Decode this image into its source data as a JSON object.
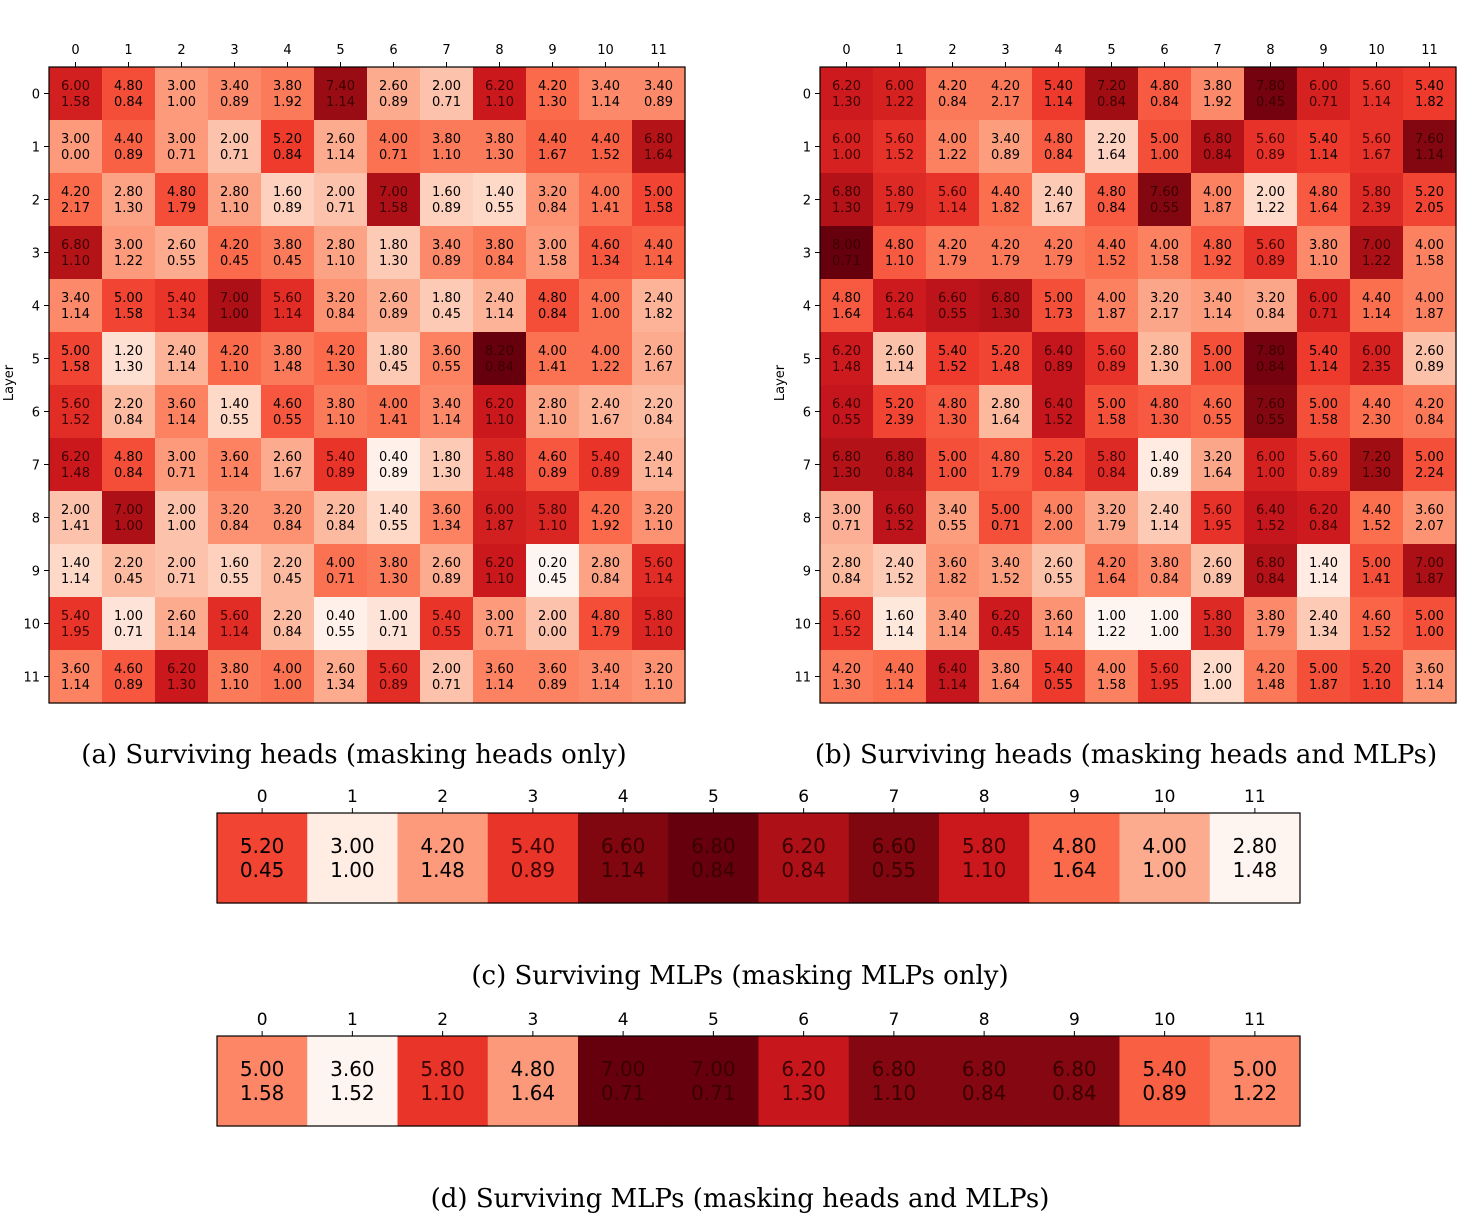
{
  "colormap": {
    "name": "Reds",
    "stops": [
      "#fff5f0",
      "#fee0d2",
      "#fcbba1",
      "#fc9272",
      "#fb6a4a",
      "#ef3b2c",
      "#cb181d",
      "#a50f15",
      "#67000d"
    ]
  },
  "chart_data": [
    {
      "type": "heatmap",
      "caption": "(a) Surviving heads (masking heads only)",
      "ylabel": "Layer",
      "x_ticks": [
        "0",
        "1",
        "2",
        "3",
        "4",
        "5",
        "6",
        "7",
        "8",
        "9",
        "10",
        "11"
      ],
      "y_ticks": [
        "0",
        "1",
        "2",
        "3",
        "4",
        "5",
        "6",
        "7",
        "8",
        "9",
        "10",
        "11"
      ],
      "mean": [
        [
          6.0,
          4.8,
          3.0,
          3.4,
          3.8,
          7.4,
          2.6,
          2.0,
          6.2,
          4.2,
          3.4,
          3.4
        ],
        [
          3.0,
          4.4,
          3.0,
          2.0,
          5.2,
          2.6,
          4.0,
          3.8,
          3.8,
          4.4,
          4.4,
          6.8
        ],
        [
          4.2,
          2.8,
          4.8,
          2.8,
          1.6,
          2.0,
          7.0,
          1.6,
          1.4,
          3.2,
          4.0,
          5.0
        ],
        [
          6.8,
          3.0,
          2.6,
          4.2,
          3.8,
          2.8,
          1.8,
          3.4,
          3.8,
          3.0,
          4.6,
          4.4
        ],
        [
          3.4,
          5.0,
          5.4,
          7.0,
          5.6,
          3.2,
          2.6,
          1.8,
          2.4,
          4.8,
          4.0,
          2.4
        ],
        [
          5.0,
          1.2,
          2.4,
          4.2,
          3.8,
          4.2,
          1.8,
          3.6,
          8.2,
          4.0,
          4.0,
          2.6
        ],
        [
          5.6,
          2.2,
          3.6,
          1.4,
          4.6,
          3.8,
          4.0,
          3.4,
          6.2,
          2.8,
          2.4,
          2.2
        ],
        [
          6.2,
          4.8,
          3.0,
          3.6,
          2.6,
          5.4,
          0.4,
          1.8,
          5.8,
          4.6,
          5.4,
          2.4
        ],
        [
          2.0,
          7.0,
          2.0,
          3.2,
          3.2,
          2.2,
          1.4,
          3.6,
          6.0,
          5.8,
          4.2,
          3.2
        ],
        [
          1.4,
          2.2,
          2.0,
          1.6,
          2.2,
          4.0,
          3.8,
          2.6,
          6.2,
          0.2,
          2.8,
          5.6
        ],
        [
          5.4,
          1.0,
          2.6,
          5.6,
          2.2,
          0.4,
          1.0,
          5.4,
          3.0,
          2.0,
          4.8,
          5.8
        ],
        [
          3.6,
          4.6,
          6.2,
          3.8,
          4.0,
          2.6,
          5.6,
          2.0,
          3.6,
          3.6,
          3.4,
          3.2
        ]
      ],
      "std": [
        [
          1.58,
          0.84,
          1.0,
          0.89,
          1.92,
          1.14,
          0.89,
          0.71,
          1.1,
          1.3,
          1.14,
          0.89
        ],
        [
          0.0,
          0.89,
          0.71,
          0.71,
          0.84,
          1.14,
          0.71,
          1.1,
          1.3,
          1.67,
          1.52,
          1.64
        ],
        [
          2.17,
          1.3,
          1.79,
          1.1,
          0.89,
          0.71,
          1.58,
          0.89,
          0.55,
          0.84,
          1.41,
          1.58
        ],
        [
          1.1,
          1.22,
          0.55,
          0.45,
          0.45,
          1.1,
          1.3,
          0.89,
          0.84,
          1.58,
          1.34,
          1.14
        ],
        [
          1.14,
          1.58,
          1.34,
          1.0,
          1.14,
          0.84,
          0.89,
          0.45,
          1.14,
          0.84,
          1.0,
          1.82
        ],
        [
          1.58,
          1.3,
          1.14,
          1.1,
          1.48,
          1.3,
          0.45,
          0.55,
          0.84,
          1.41,
          1.22,
          1.67
        ],
        [
          1.52,
          0.84,
          1.14,
          0.55,
          0.55,
          1.1,
          1.41,
          1.14,
          1.1,
          1.1,
          1.67,
          0.84
        ],
        [
          1.48,
          0.84,
          0.71,
          1.14,
          1.67,
          0.89,
          0.89,
          1.3,
          1.48,
          0.89,
          0.89,
          1.14
        ],
        [
          1.41,
          1.0,
          1.0,
          0.84,
          0.84,
          0.84,
          0.55,
          1.34,
          1.87,
          1.1,
          1.92,
          1.1
        ],
        [
          1.14,
          0.45,
          0.71,
          0.55,
          0.45,
          0.71,
          1.3,
          0.89,
          1.1,
          0.45,
          0.84,
          1.14
        ],
        [
          1.95,
          0.71,
          1.14,
          1.14,
          0.84,
          0.55,
          0.71,
          0.55,
          0.71,
          0.0,
          1.79,
          1.1
        ],
        [
          1.14,
          0.89,
          1.3,
          1.1,
          1.0,
          1.34,
          0.89,
          0.71,
          1.14,
          0.89,
          1.14,
          1.1
        ]
      ],
      "vmin": 0.2,
      "vmax": 8.2
    },
    {
      "type": "heatmap",
      "caption": "(b) Surviving heads (masking heads and MLPs)",
      "ylabel": "Layer",
      "x_ticks": [
        "0",
        "1",
        "2",
        "3",
        "4",
        "5",
        "6",
        "7",
        "8",
        "9",
        "10",
        "11"
      ],
      "y_ticks": [
        "0",
        "1",
        "2",
        "3",
        "4",
        "5",
        "6",
        "7",
        "8",
        "9",
        "10",
        "11"
      ],
      "mean": [
        [
          6.2,
          6.0,
          4.2,
          4.2,
          5.4,
          7.2,
          4.8,
          3.8,
          7.8,
          6.0,
          5.6,
          5.4
        ],
        [
          6.0,
          5.6,
          4.0,
          3.4,
          4.8,
          2.2,
          5.0,
          6.8,
          5.6,
          5.4,
          5.6,
          7.6
        ],
        [
          6.8,
          5.8,
          5.6,
          4.4,
          2.4,
          4.8,
          7.6,
          4.0,
          2.0,
          4.8,
          5.8,
          5.2
        ],
        [
          8.0,
          4.8,
          4.2,
          4.2,
          4.2,
          4.4,
          4.0,
          4.8,
          5.6,
          3.8,
          7.0,
          4.0
        ],
        [
          4.8,
          6.2,
          6.6,
          6.8,
          5.0,
          4.0,
          3.2,
          3.4,
          3.2,
          6.0,
          4.4,
          4.0
        ],
        [
          6.2,
          2.6,
          5.4,
          5.2,
          6.4,
          5.6,
          2.8,
          5.0,
          7.8,
          5.4,
          6.0,
          2.6
        ],
        [
          6.4,
          5.2,
          4.8,
          2.8,
          6.4,
          5.0,
          4.8,
          4.6,
          7.6,
          5.0,
          4.4,
          4.2
        ],
        [
          6.8,
          6.8,
          5.0,
          4.8,
          5.2,
          5.8,
          1.4,
          3.2,
          6.0,
          5.6,
          7.2,
          5.0
        ],
        [
          3.0,
          6.6,
          3.4,
          5.0,
          4.0,
          3.2,
          2.4,
          5.6,
          6.4,
          6.2,
          4.4,
          3.6
        ],
        [
          2.8,
          2.4,
          3.6,
          3.4,
          2.6,
          4.2,
          3.8,
          2.6,
          6.8,
          1.4,
          5.0,
          7.0
        ],
        [
          5.6,
          1.6,
          3.4,
          6.2,
          3.6,
          1.0,
          1.0,
          5.8,
          3.8,
          2.4,
          4.6,
          5.0
        ],
        [
          4.2,
          4.4,
          6.4,
          3.8,
          5.4,
          4.0,
          5.6,
          2.0,
          4.2,
          5.0,
          5.2,
          3.6
        ]
      ],
      "std": [
        [
          1.3,
          1.22,
          0.84,
          2.17,
          1.14,
          0.84,
          0.84,
          1.92,
          0.45,
          0.71,
          1.14,
          1.82
        ],
        [
          1.0,
          1.52,
          1.22,
          0.89,
          0.84,
          1.64,
          1.0,
          0.84,
          0.89,
          1.14,
          1.67,
          1.14
        ],
        [
          1.3,
          1.79,
          1.14,
          1.82,
          1.67,
          0.84,
          0.55,
          1.87,
          1.22,
          1.64,
          2.39,
          2.05
        ],
        [
          0.71,
          1.1,
          1.79,
          1.79,
          1.79,
          1.52,
          1.58,
          1.92,
          0.89,
          1.1,
          1.22,
          1.58
        ],
        [
          1.64,
          1.64,
          0.55,
          1.3,
          1.73,
          1.87,
          2.17,
          1.14,
          0.84,
          0.71,
          1.14,
          1.87
        ],
        [
          1.48,
          1.14,
          1.52,
          1.48,
          0.89,
          0.89,
          1.3,
          1.0,
          0.84,
          1.14,
          2.35,
          0.89
        ],
        [
          0.55,
          2.39,
          1.3,
          1.64,
          1.52,
          1.58,
          1.3,
          0.55,
          0.55,
          1.58,
          2.3,
          0.84
        ],
        [
          1.3,
          0.84,
          1.0,
          1.79,
          0.84,
          0.84,
          0.89,
          1.64,
          1.0,
          0.89,
          1.3,
          2.24
        ],
        [
          0.71,
          1.52,
          0.55,
          0.71,
          2.0,
          1.79,
          1.14,
          1.95,
          1.52,
          0.84,
          1.52,
          2.07
        ],
        [
          0.84,
          1.52,
          1.82,
          1.52,
          0.55,
          1.64,
          0.84,
          0.89,
          0.84,
          1.14,
          1.41,
          1.87
        ],
        [
          1.52,
          1.14,
          1.14,
          0.45,
          1.14,
          1.22,
          1.0,
          1.3,
          1.79,
          1.34,
          1.52,
          1.0
        ],
        [
          1.3,
          1.14,
          1.14,
          1.64,
          0.55,
          1.58,
          1.95,
          1.0,
          1.48,
          1.87,
          1.1,
          1.14
        ]
      ],
      "vmin": 1.0,
      "vmax": 8.0
    },
    {
      "type": "heatmap",
      "caption": "(c) Surviving MLPs (masking MLPs only)",
      "ylabel": "",
      "x_ticks": [
        "0",
        "1",
        "2",
        "3",
        "4",
        "5",
        "6",
        "7",
        "8",
        "9",
        "10",
        "11"
      ],
      "y_ticks": [],
      "mean": [
        [
          5.2,
          3.0,
          4.2,
          5.4,
          6.6,
          6.8,
          6.2,
          6.6,
          5.8,
          4.8,
          4.0,
          2.8
        ]
      ],
      "std": [
        [
          0.45,
          1.0,
          1.48,
          0.89,
          1.14,
          0.84,
          0.84,
          0.55,
          1.1,
          1.64,
          1.0,
          1.48
        ]
      ],
      "vmin": 2.8,
      "vmax": 6.8
    },
    {
      "type": "heatmap",
      "caption": "(d) Surviving MLPs (masking heads and MLPs)",
      "ylabel": "",
      "x_ticks": [
        "0",
        "1",
        "2",
        "3",
        "4",
        "5",
        "6",
        "7",
        "8",
        "9",
        "10",
        "11"
      ],
      "y_ticks": [],
      "mean": [
        [
          5.0,
          3.6,
          5.8,
          4.8,
          7.0,
          7.0,
          6.2,
          6.8,
          6.8,
          6.8,
          5.4,
          5.0
        ]
      ],
      "std": [
        [
          1.58,
          1.52,
          1.1,
          1.64,
          0.71,
          0.71,
          1.3,
          1.1,
          0.84,
          0.84,
          0.89,
          1.22
        ]
      ],
      "vmin": 3.6,
      "vmax": 7.0
    }
  ]
}
